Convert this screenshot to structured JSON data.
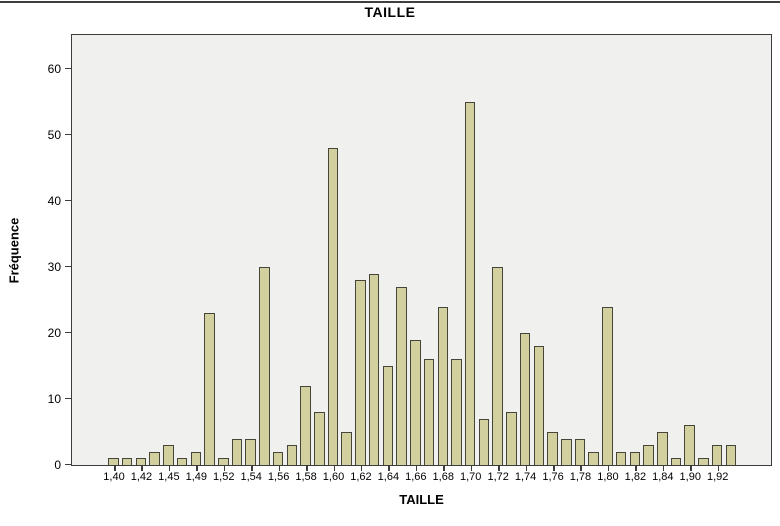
{
  "figure": {
    "title": "TAILLE"
  },
  "chart_data": {
    "type": "bar",
    "title": "TAILLE",
    "xlabel": "TAILLE",
    "ylabel": "Fréquence",
    "ylim": [
      0,
      65
    ],
    "yticks": [
      0,
      10,
      20,
      30,
      40,
      50,
      60
    ],
    "grid": false,
    "legend": "none",
    "plot_bg_color": "#f0f0ef",
    "bar_fill_color": "#d3d09f",
    "bar_border_color": "#45453a",
    "frame_color": "#3c3c3c",
    "bars": [
      {
        "label": "1,40",
        "value": 1
      },
      {
        "label": "",
        "value": 1
      },
      {
        "label": "1,42",
        "value": 1
      },
      {
        "label": "",
        "value": 2
      },
      {
        "label": "1,45",
        "value": 3
      },
      {
        "label": "",
        "value": 1
      },
      {
        "label": "1,49",
        "value": 2
      },
      {
        "label": "",
        "value": 23
      },
      {
        "label": "1,52",
        "value": 1
      },
      {
        "label": "",
        "value": 4
      },
      {
        "label": "1,54",
        "value": 4
      },
      {
        "label": "",
        "value": 30
      },
      {
        "label": "1,56",
        "value": 2
      },
      {
        "label": "",
        "value": 3
      },
      {
        "label": "1,58",
        "value": 12
      },
      {
        "label": "",
        "value": 8
      },
      {
        "label": "1,60",
        "value": 48
      },
      {
        "label": "",
        "value": 5
      },
      {
        "label": "1,62",
        "value": 28
      },
      {
        "label": "",
        "value": 29
      },
      {
        "label": "1,64",
        "value": 15
      },
      {
        "label": "",
        "value": 27
      },
      {
        "label": "1,66",
        "value": 19
      },
      {
        "label": "",
        "value": 16
      },
      {
        "label": "1,68",
        "value": 24
      },
      {
        "label": "",
        "value": 16
      },
      {
        "label": "1,70",
        "value": 55
      },
      {
        "label": "",
        "value": 7
      },
      {
        "label": "1,72",
        "value": 30
      },
      {
        "label": "",
        "value": 8
      },
      {
        "label": "1,74",
        "value": 20
      },
      {
        "label": "",
        "value": 18
      },
      {
        "label": "1,76",
        "value": 5
      },
      {
        "label": "",
        "value": 4
      },
      {
        "label": "1,78",
        "value": 4
      },
      {
        "label": "",
        "value": 2
      },
      {
        "label": "1,80",
        "value": 24
      },
      {
        "label": "",
        "value": 2
      },
      {
        "label": "1,82",
        "value": 2
      },
      {
        "label": "",
        "value": 3
      },
      {
        "label": "1,84",
        "value": 5
      },
      {
        "label": "",
        "value": 1
      },
      {
        "label": "1,90",
        "value": 6
      },
      {
        "label": "",
        "value": 1
      },
      {
        "label": "1,92",
        "value": 3
      },
      {
        "label": "",
        "value": 3
      }
    ]
  }
}
